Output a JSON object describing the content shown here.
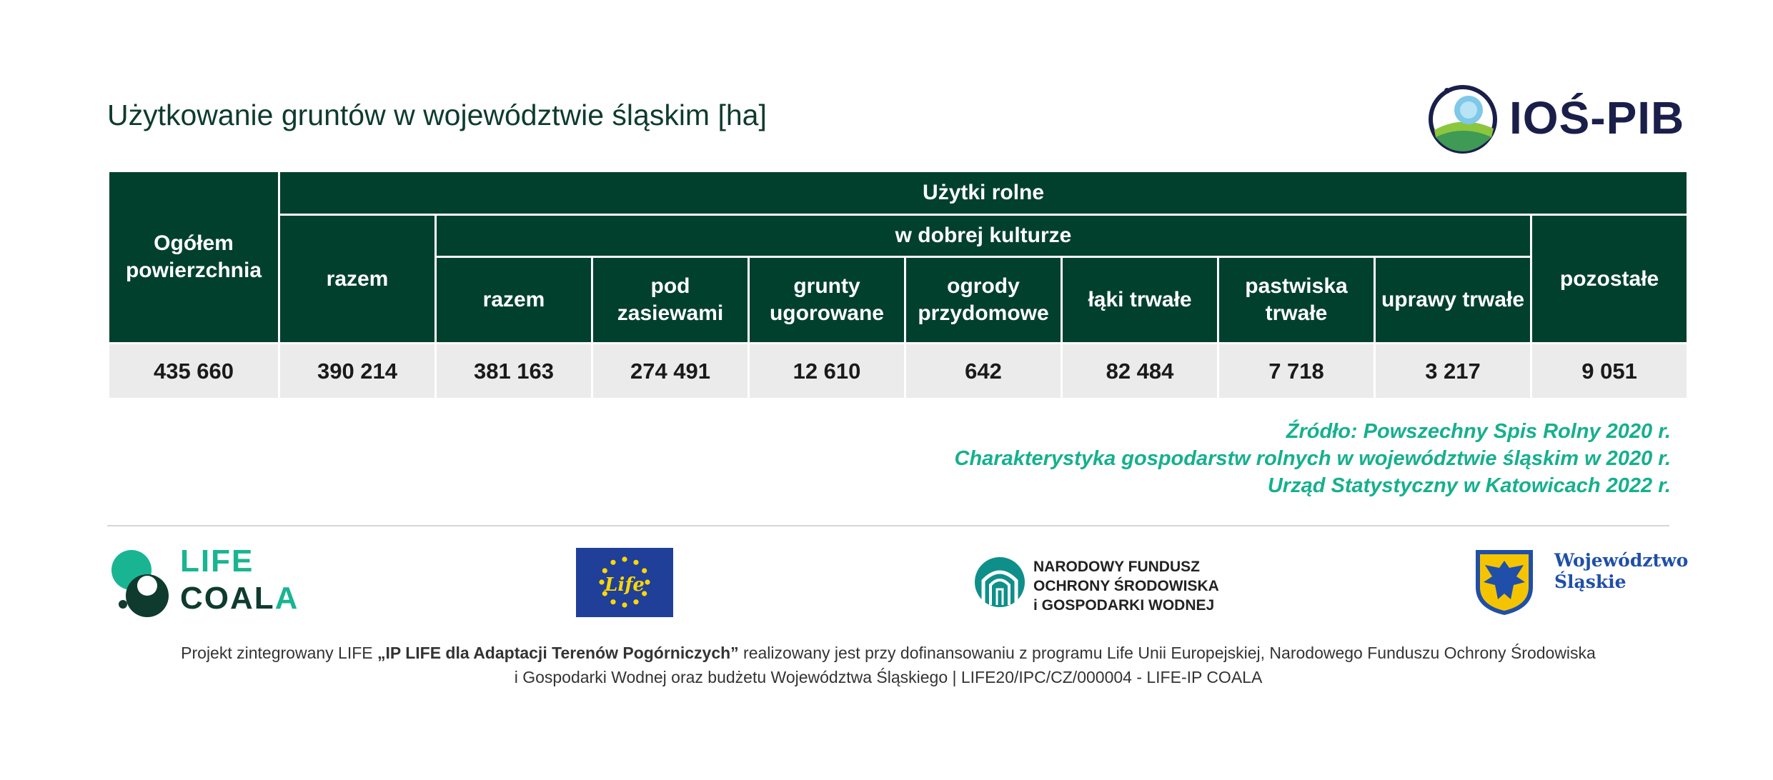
{
  "title": "Użytkowanie gruntów w województwie śląskim [ha]",
  "logo_ios": {
    "text": "IOŚ-PIB",
    "icon": "ios-pib-logo-icon"
  },
  "table": {
    "col_total_header": "Ogółem powierzchnia",
    "group_header": "Użytki rolne",
    "col_razem_header": "razem",
    "subgroup_header": "w dobrej kulturze",
    "sub_columns": [
      "razem",
      "pod zasiewami",
      "grunty ugorowane",
      "ogrody przydomowe",
      "łąki trwałe",
      "pastwiska trwałe",
      "uprawy trwałe"
    ],
    "col_pozostale_header": "pozostałe",
    "values": [
      "435 660",
      "390 214",
      "381 163",
      "274 491",
      "12 610",
      "642",
      "82 484",
      "7 718",
      "3 217",
      "9 051"
    ]
  },
  "source": {
    "line1": "Źródło: Powszechny Spis Rolny 2020 r.",
    "line2": "Charakterystyka gospodarstw rolnych w województwie śląskim w 2020 r.",
    "line3": "Urząd Statystyczny w Katowicach 2022 r."
  },
  "logos": {
    "life_line1": "LIFE",
    "life_line2_main": "COAL",
    "life_line2_accent": "A",
    "eu_flag_text": "Life",
    "nfos_line1": "NARODOWY FUNDUSZ",
    "nfos_line2": "OCHRONY ŚRODOWISKA",
    "nfos_line3": "i GOSPODARKI WODNEJ",
    "slask_line1": "Województwo",
    "slask_line2": "Śląskie"
  },
  "footer": {
    "part1": "Projekt zintegrowany LIFE ",
    "part2_bold": "„IP LIFE dla Adaptacji Terenów Pogórniczych”",
    "part3": " realizowany jest przy dofinansowaniu z programu Life Unii Europejskiej, Narodowego Funduszu Ochrony Środowiska",
    "line2": "i Gospodarki Wodnej oraz budżetu Województwa Śląskiego  |  LIFE20/IPC/CZ/000004 - LIFE-IP COALA"
  },
  "colors": {
    "header_bg": "#02402e",
    "cell_bg": "#ebebeb",
    "accent": "#16b08e",
    "title": "#0e3b2e"
  }
}
